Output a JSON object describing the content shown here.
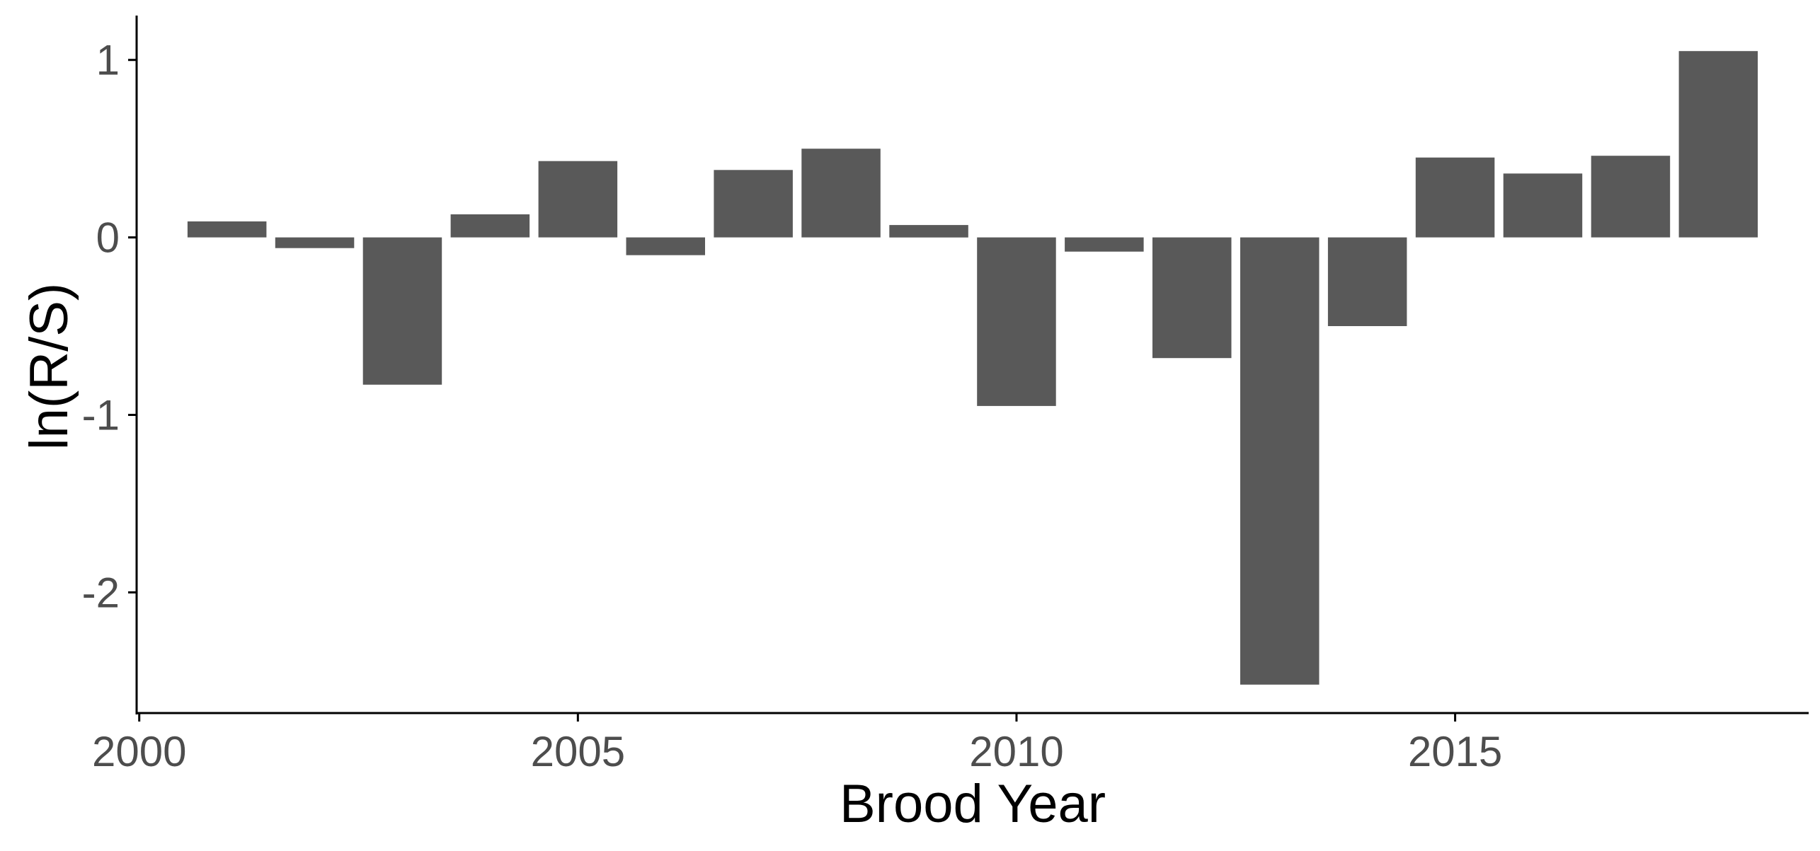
{
  "chart_data": {
    "type": "bar",
    "title": "",
    "xlabel": "Brood Year",
    "ylabel": "ln(R/S)",
    "x": [
      2001,
      2002,
      2003,
      2004,
      2005,
      2006,
      2007,
      2008,
      2009,
      2010,
      2011,
      2012,
      2013,
      2014,
      2015,
      2016,
      2017,
      2018
    ],
    "values": [
      0.09,
      -0.06,
      -0.83,
      0.13,
      0.43,
      -0.1,
      0.38,
      0.5,
      0.07,
      -0.95,
      -0.08,
      -0.68,
      -2.52,
      -0.5,
      0.45,
      0.36,
      0.46,
      1.05
    ],
    "xlim": [
      1999.97,
      2019.03
    ],
    "ylim": [
      -2.68,
      1.25
    ],
    "x_ticks": [
      2000,
      2005,
      2010,
      2015
    ],
    "x_tick_labels": [
      "2000",
      "2005",
      "2010",
      "2015"
    ],
    "y_ticks": [
      1,
      0,
      -1,
      -2
    ],
    "y_tick_labels": [
      "1",
      "0",
      "-1",
      "-2"
    ],
    "grid": false,
    "legend": "none",
    "colors": {
      "bar": "#595959",
      "axis": "#000000",
      "tick_text": "#4d4d4d",
      "title_text": "#000000"
    }
  }
}
